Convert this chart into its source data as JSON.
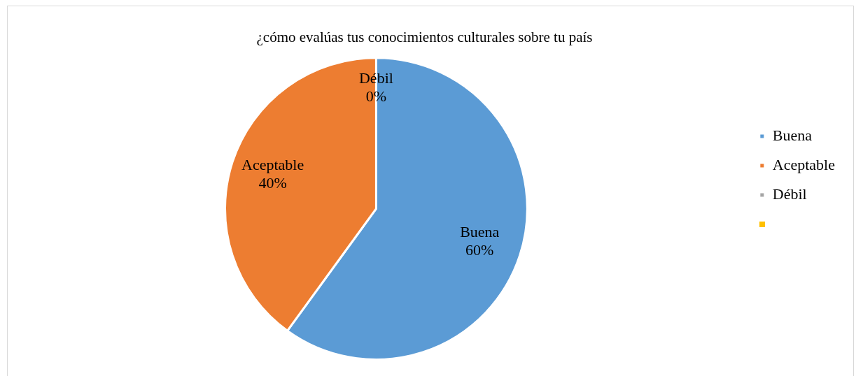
{
  "chart_data": {
    "type": "pie",
    "title": "¿cómo evalúas tus conocimientos culturales sobre tu país",
    "categories": [
      "Buena",
      "Aceptable",
      "Débil",
      null
    ],
    "values": [
      60,
      40,
      0,
      0
    ],
    "colors": [
      "#5b9bd5",
      "#ed7d31",
      "#a5a5a5",
      "#ffc000"
    ],
    "value_labels": [
      "60%",
      "40%",
      "0%",
      null
    ],
    "legend": "right"
  }
}
